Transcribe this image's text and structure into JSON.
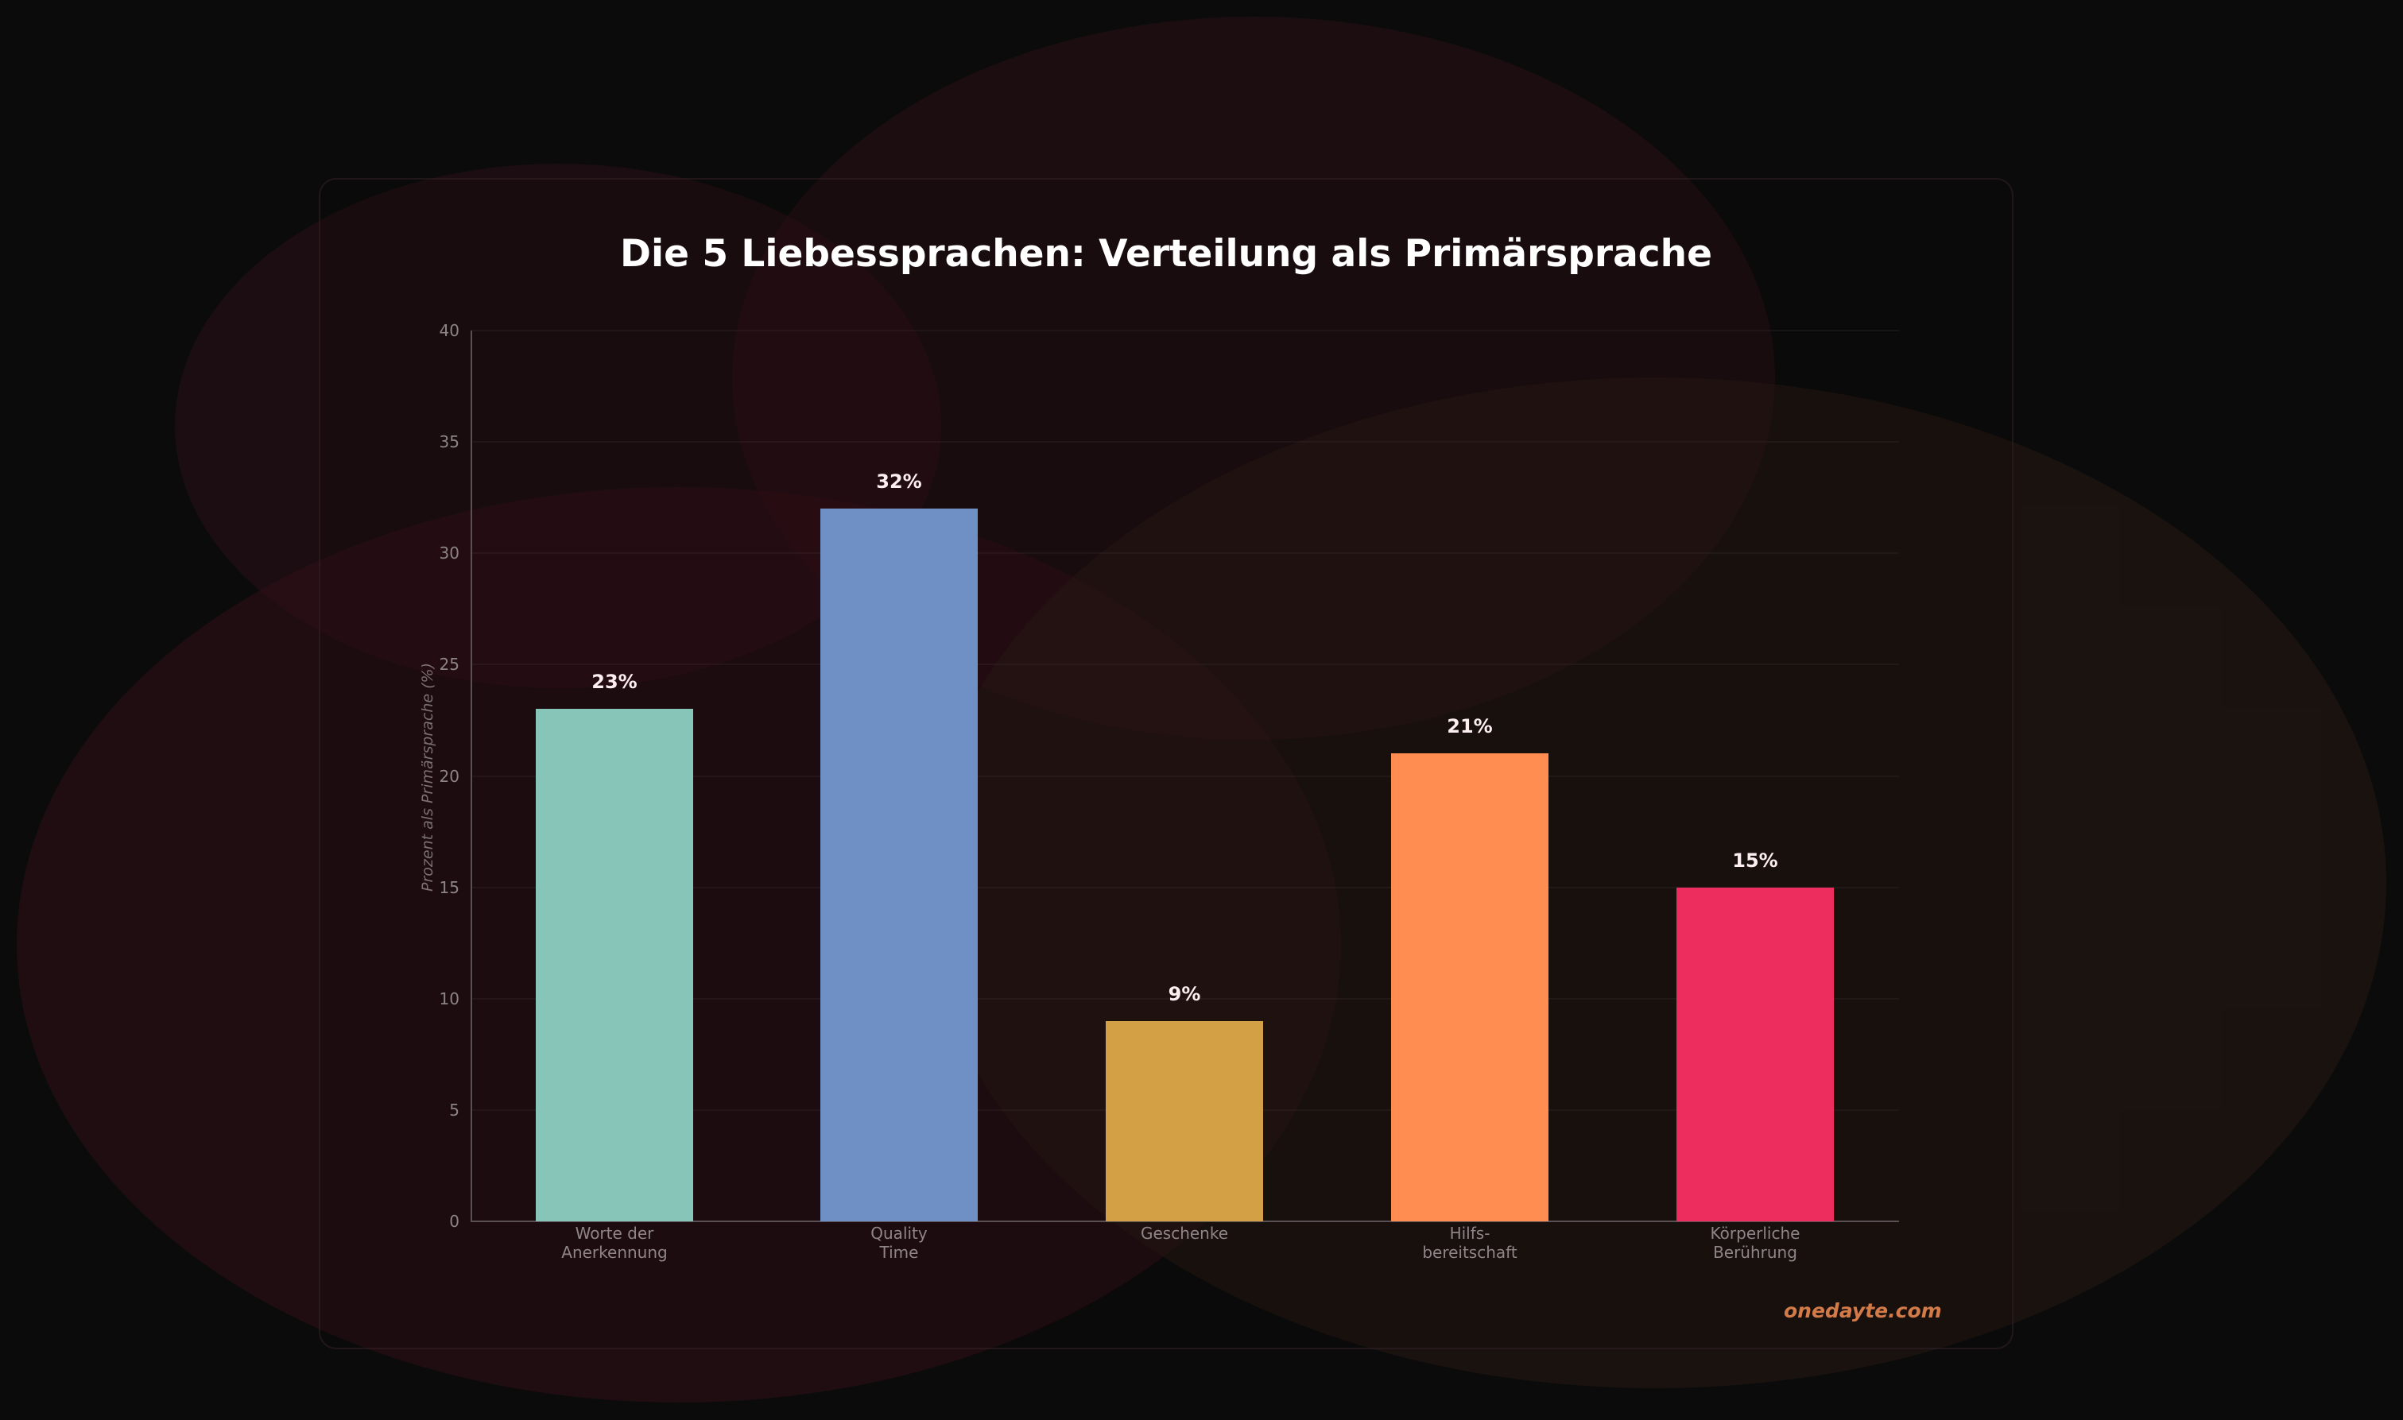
{
  "chart_data": {
    "type": "bar",
    "title": "Die 5 Liebessprachen: Verteilung als Primärsprache",
    "xlabel": "",
    "ylabel": "Prozent als Primärsprache (%)",
    "ylim": [
      0,
      40
    ],
    "yticks": [
      0,
      5,
      10,
      15,
      20,
      25,
      30,
      35,
      40
    ],
    "grid": true,
    "categories": [
      "Worte der\nAnerkennung",
      "Quality\nTime",
      "Geschenke",
      "Hilfs-\nbereitschaft",
      "Körperliche\nBerührung"
    ],
    "values": [
      23,
      32,
      9,
      21,
      15
    ],
    "value_labels": [
      "23%",
      "32%",
      "9%",
      "21%",
      "15%"
    ],
    "colors": [
      "#86c5b8",
      "#6f90c5",
      "#d4a045",
      "#ff8c50",
      "#ee2d5f"
    ],
    "legend": null
  },
  "header": {
    "title": "Die 5 Liebessprachen: Verteilung als Primärsprache"
  },
  "axes": {
    "ylabel": "Prozent als Primärsprache (%)",
    "yticks": [
      "0",
      "5",
      "10",
      "15",
      "20",
      "25",
      "30",
      "35",
      "40"
    ]
  },
  "bars": [
    {
      "label": "Worte der\nAnerkennung",
      "value": 23,
      "value_label": "23%",
      "color": "#86c5b8"
    },
    {
      "label": "Quality\nTime",
      "value": 32,
      "value_label": "32%",
      "color": "#6f90c5"
    },
    {
      "label": "Geschenke",
      "value": 9,
      "value_label": "9%",
      "color": "#d4a045"
    },
    {
      "label": "Hilfs-\nbereitschaft",
      "value": 21,
      "value_label": "21%",
      "color": "#ff8c50"
    },
    {
      "label": "Körperliche\nBerührung",
      "value": 15,
      "value_label": "15%",
      "color": "#ee2d5f"
    }
  ],
  "footer": {
    "watermark": "onedayte.com"
  },
  "colors": {
    "background": "#0b0b0b",
    "text": "#ffffff",
    "watermark": "#d27a48"
  }
}
